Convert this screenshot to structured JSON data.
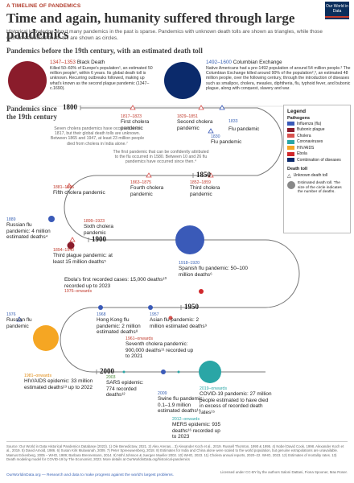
{
  "header": {
    "kicker": "A TIMELINE OF PANDEMICS",
    "title": "Time and again, humanity suffered through large pandemics",
    "subtitle": "Historical knowledge about many pandemics in the past is sparse. Pandemics with unknown death tolls are shown as triangles, while those with an estimated death toll are shown as circles.",
    "logo": "Our World in Data"
  },
  "section_pre19": {
    "title": "Pandemics before the 19th century, with an estimated death toll",
    "black_death": {
      "years": "1347–1353",
      "name": "Black Death",
      "text": "Killed 50–60% of Europe's population¹, an estimated 50 million people¹, within 6 years. Its global death toll is unknown. Recurring outbreaks followed, making up what's known as the second plague pandemic (1347–c.1690)."
    },
    "columbian": {
      "years": "1492–1600",
      "name": "Columbian Exchange",
      "text": "Native Americans had a pre-1492 population of around 54 million people.² The Columbian Exchange killed around 90% of the population²,³, an estimated 48 million people, over the following century, through the introduction of diseases such as smallpox, cholera, measles, diphtheria, flu, typhoid fever, and bubonic plague, along with conquest, slavery and war."
    }
  },
  "section_since": {
    "title": "Pandemics since the 19th century"
  },
  "legend": {
    "title": "Legend",
    "pathogens_title": "Pathogens",
    "pathogens": [
      {
        "name": "Influenza (flu)",
        "color": "#3a5ab8"
      },
      {
        "name": "Bubonic plague",
        "color": "#8a1c2b"
      },
      {
        "name": "Cholera",
        "color": "#d9534f"
      },
      {
        "name": "Coronaviruses",
        "color": "#2aa6a6"
      },
      {
        "name": "HIV/AIDS",
        "color": "#f5a623"
      },
      {
        "name": "Ebola",
        "color": "#d0282c"
      },
      {
        "name": "Combination of diseases",
        "color": "#0b2a6b"
      }
    ],
    "death_title": "Death toll",
    "unknown": "Unknown death toll",
    "estimated": "Estimated death toll. The size of the circle indicates the number of deaths."
  },
  "timeline_years": [
    "1800",
    "1850",
    "1900",
    "1950",
    "2000"
  ],
  "events": {
    "cholera1": {
      "years": "1817–1823",
      "name": "First cholera pandemic"
    },
    "cholera2": {
      "years": "1829–1851",
      "name": "Second cholera pandemic"
    },
    "flu1833": {
      "years": "1833",
      "name": "Flu pandemic"
    },
    "flu1830": {
      "years": "1830",
      "name": "Flu pandemic"
    },
    "cholera4": {
      "years": "1863–1875",
      "name": "Fourth cholera pandemic"
    },
    "cholera3": {
      "years": "1852–1859",
      "name": "Third cholera pandemic"
    },
    "cholera5": {
      "years": "1881–1896",
      "name": "Fifth cholera pandemic"
    },
    "russian1889": {
      "years": "1889",
      "name": "Russian flu pandemic: 4 million estimated deaths⁴"
    },
    "cholera6": {
      "years": "1899–1923",
      "name": "Sixth cholera pandemic"
    },
    "plague3": {
      "years": "1894–1940",
      "name": "Third plague pandemic: at least 15 million deaths⁵"
    },
    "spanish": {
      "years": "1918–1920",
      "name": "Spanish flu pandemic: 50–100 million deaths⁶"
    },
    "ebola": {
      "name": "Ebola's first recorded cases: 15,000 deaths¹⁰ recorded up to 2023",
      "years": "1976–onwards"
    },
    "russian1976": {
      "years": "1976",
      "name": "Russian flu pandemic"
    },
    "hongkong": {
      "years": "1968",
      "name": "Hong Kong flu pandemic: 2 million estimated deaths⁸"
    },
    "asian": {
      "years": "1957",
      "name": "Asian flu pandemic: 2 million estimated deaths⁹"
    },
    "cholera7": {
      "years": "1961–onwards",
      "name": "Seventh cholera pandemic: 900,000 deaths¹¹ recorded up to 2021"
    },
    "hiv": {
      "years": "1981–onwards",
      "name": "HIV/AIDS epidemic: 33 million estimated deaths¹³ up to 2022"
    },
    "sars": {
      "years": "2003",
      "name": "SARS epidemic: 774 recorded deaths¹²"
    },
    "swine": {
      "years": "2009",
      "name": "Swine flu pandemic: 0.1–1.9 million estimated deaths¹⁴"
    },
    "covid": {
      "years": "2019–onwards",
      "name": "COVID-19 pandemic: 27 million people estimated to have died in excess of recorded death rates¹⁵"
    },
    "mers": {
      "years": "2012–onwards",
      "name": "MERS epidemic: 935 deaths¹⁶ recorded up to 2023"
    }
  },
  "notes": {
    "note1": "Seven cholera pandemics have occurred since 1817, but their global death tolls are unknown. Between 1865 and 1947, at least 23 million people died from cholera in India alone.⁷",
    "note2": "The first pandemic that can be confidently attributed to the flu occurred in 1580. Between 10 and 26 flu pandemics have occurred since then.⁴"
  },
  "chart_data": {
    "type": "scatter",
    "title": "Time and again, humanity suffered through large pandemics",
    "series": [
      {
        "name": "Influenza (flu)",
        "values": [
          {
            "x": 1833,
            "y": null
          },
          {
            "x": 1830,
            "y": null
          },
          {
            "x": 1889,
            "y": 4
          },
          {
            "x": 1918,
            "y": 50
          },
          {
            "x": 1957,
            "y": 2
          },
          {
            "x": 1968,
            "y": 2
          },
          {
            "x": 1976,
            "y": null
          },
          {
            "x": 2009,
            "y": 1
          }
        ]
      },
      {
        "name": "Bubonic plague",
        "values": [
          {
            "x": 1347,
            "y": 50
          },
          {
            "x": 1894,
            "y": 15
          }
        ]
      },
      {
        "name": "Cholera",
        "values": [
          {
            "x": 1817,
            "y": null
          },
          {
            "x": 1829,
            "y": null
          },
          {
            "x": 1852,
            "y": null
          },
          {
            "x": 1863,
            "y": null
          },
          {
            "x": 1881,
            "y": null
          },
          {
            "x": 1899,
            "y": null
          },
          {
            "x": 1961,
            "y": 0.9
          }
        ]
      },
      {
        "name": "Coronaviruses",
        "values": [
          {
            "x": 2003,
            "y": 0.000774
          },
          {
            "x": 2012,
            "y": 0.000935
          },
          {
            "x": 2019,
            "y": 27
          }
        ]
      },
      {
        "name": "HIV/AIDS",
        "values": [
          {
            "x": 1981,
            "y": 33
          }
        ]
      },
      {
        "name": "Ebola",
        "values": [
          {
            "x": 1976,
            "y": 0.015
          }
        ]
      },
      {
        "name": "Combination of diseases",
        "values": [
          {
            "x": 1492,
            "y": 48
          }
        ]
      }
    ],
    "xlabel": "",
    "ylabel": ""
  },
  "sources": {
    "text": "Source: Our World in Data Historical Pandemics Database (2023). 1) Ole Benedictow, 2021. 2) Alex Arenas... 3) Alexander Koch et al., 2019. Russell Thornton, 1990 & 1995. 4) Nobel David Cook, 1998. Alexander Koch et al., 2019. 5) David Arnold, 1986. 6) Susan Kirk Mulavanah, 2009. 7) Peter Spreeuwenberg, 2018. 8) Estimates for India and China alone were scaled to the world population, but genuine extrapolations are unavailable. Mamus Eckenberg, 2005 – WHO, 1989; Barbara Brennemann, 2014. 9) Nöhl Johnson & Juergen Mueller 2002. 10) WHO, 2023. 11) Cholera annual reports, 2020–22. WHO, 2023. 12) Estimates of mortality rates. 13) Death modeling model for COVID-19 by The Economist, 2023. More details at OurWorldinData.org/historical-pandemics",
    "footer_left": "OurWorldinData.org — Research and data to make progress against the world's largest problems.",
    "footer_right": "Licensed under CC-BY by the authors Saloni Dattani, Fiona Spooner, Max Roser."
  }
}
